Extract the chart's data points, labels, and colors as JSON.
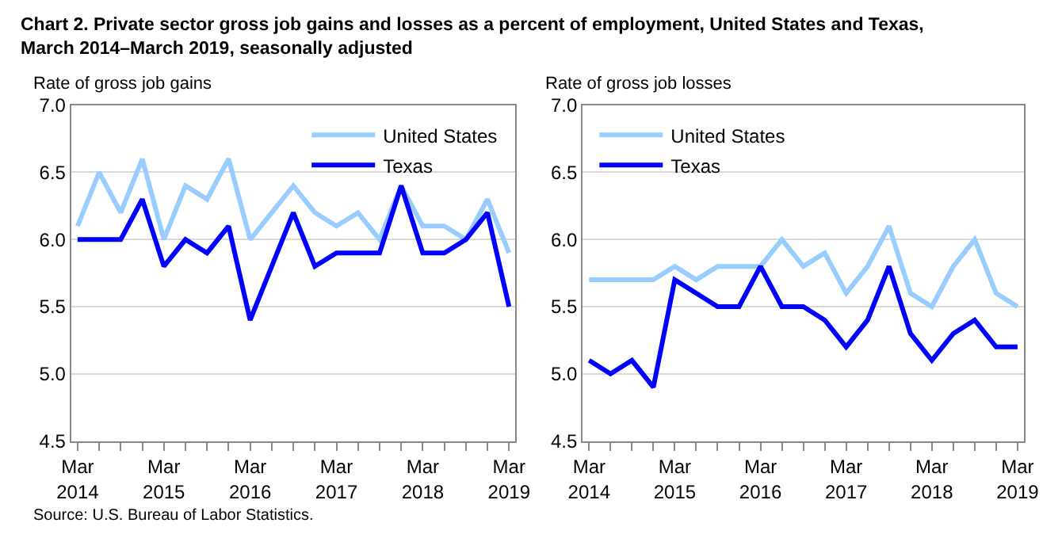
{
  "chart_data": [
    {
      "type": "line",
      "title": "Chart 2. Private sector gross job gains and losses as a percent of employment, United States and Texas,\nMarch 2014–March 2019, seasonally adjusted",
      "ylabel": "Rate of gross job gains",
      "categories": [
        "Mar\n2014",
        null,
        null,
        null,
        "Mar\n2015",
        null,
        null,
        null,
        "Mar\n2016",
        null,
        null,
        null,
        "Mar\n2017",
        null,
        null,
        null,
        "Mar\n2018",
        null,
        null,
        null,
        "Mar\n2019"
      ],
      "series": [
        {
          "name": "United States",
          "color": "#99ccff",
          "values": [
            6.1,
            6.5,
            6.2,
            6.6,
            6.0,
            6.4,
            6.3,
            6.6,
            6.0,
            6.2,
            6.4,
            6.2,
            6.1,
            6.2,
            6.0,
            6.4,
            6.1,
            6.1,
            6.0,
            6.3,
            5.9
          ]
        },
        {
          "name": "Texas",
          "color": "#0000ff",
          "values": [
            6.0,
            6.0,
            6.0,
            6.3,
            5.8,
            6.0,
            5.9,
            6.1,
            5.4,
            5.8,
            6.2,
            5.8,
            5.9,
            5.9,
            5.9,
            6.4,
            5.9,
            5.9,
            6.0,
            6.2,
            5.5
          ]
        }
      ],
      "ylim": [
        4.5,
        7.0
      ],
      "yticks": [
        {
          "value": 4.5,
          "label": "4.5"
        },
        {
          "value": 5.0,
          "label": "5.0"
        },
        {
          "value": 5.5,
          "label": "5.5"
        },
        {
          "value": 6.0,
          "label": "6.0"
        },
        {
          "value": 6.5,
          "label": "6.5"
        },
        {
          "value": 7.0,
          "label": "7.0"
        }
      ],
      "grid": "y",
      "legend": "top right",
      "marker": "none",
      "line_style": "solid",
      "annotations": [
        "Source: U.S. Bureau of Labor Statistics."
      ]
    },
    {
      "type": "line",
      "ylabel": "Rate of gross job losses",
      "categories": [
        "Mar\n2014",
        null,
        null,
        null,
        "Mar\n2015",
        null,
        null,
        null,
        "Mar\n2016",
        null,
        null,
        null,
        "Mar\n2017",
        null,
        null,
        null,
        "Mar\n2018",
        null,
        null,
        null,
        "Mar\n2019"
      ],
      "series": [
        {
          "name": "United States",
          "color": "#99ccff",
          "values": [
            5.7,
            5.7,
            5.7,
            5.7,
            5.8,
            5.7,
            5.8,
            5.8,
            5.8,
            6.0,
            5.8,
            5.9,
            5.6,
            5.8,
            6.1,
            5.6,
            5.5,
            5.8,
            6.0,
            5.6,
            5.5
          ]
        },
        {
          "name": "Texas",
          "color": "#0000ff",
          "values": [
            5.1,
            5.0,
            5.1,
            4.9,
            5.7,
            5.6,
            5.5,
            5.5,
            5.8,
            5.5,
            5.5,
            5.4,
            5.2,
            5.4,
            5.8,
            5.3,
            5.1,
            5.3,
            5.4,
            5.2,
            5.2
          ]
        }
      ],
      "ylim": [
        4.5,
        7.0
      ],
      "yticks": [
        {
          "value": 4.5,
          "label": "4.5"
        },
        {
          "value": 5.0,
          "label": "5.0"
        },
        {
          "value": 5.5,
          "label": "5.5"
        },
        {
          "value": 6.0,
          "label": "6.0"
        },
        {
          "value": 6.5,
          "label": "6.5"
        },
        {
          "value": 7.0,
          "label": "7.0"
        }
      ],
      "grid": "y",
      "legend": "top left",
      "marker": "none",
      "line_style": "solid"
    }
  ]
}
